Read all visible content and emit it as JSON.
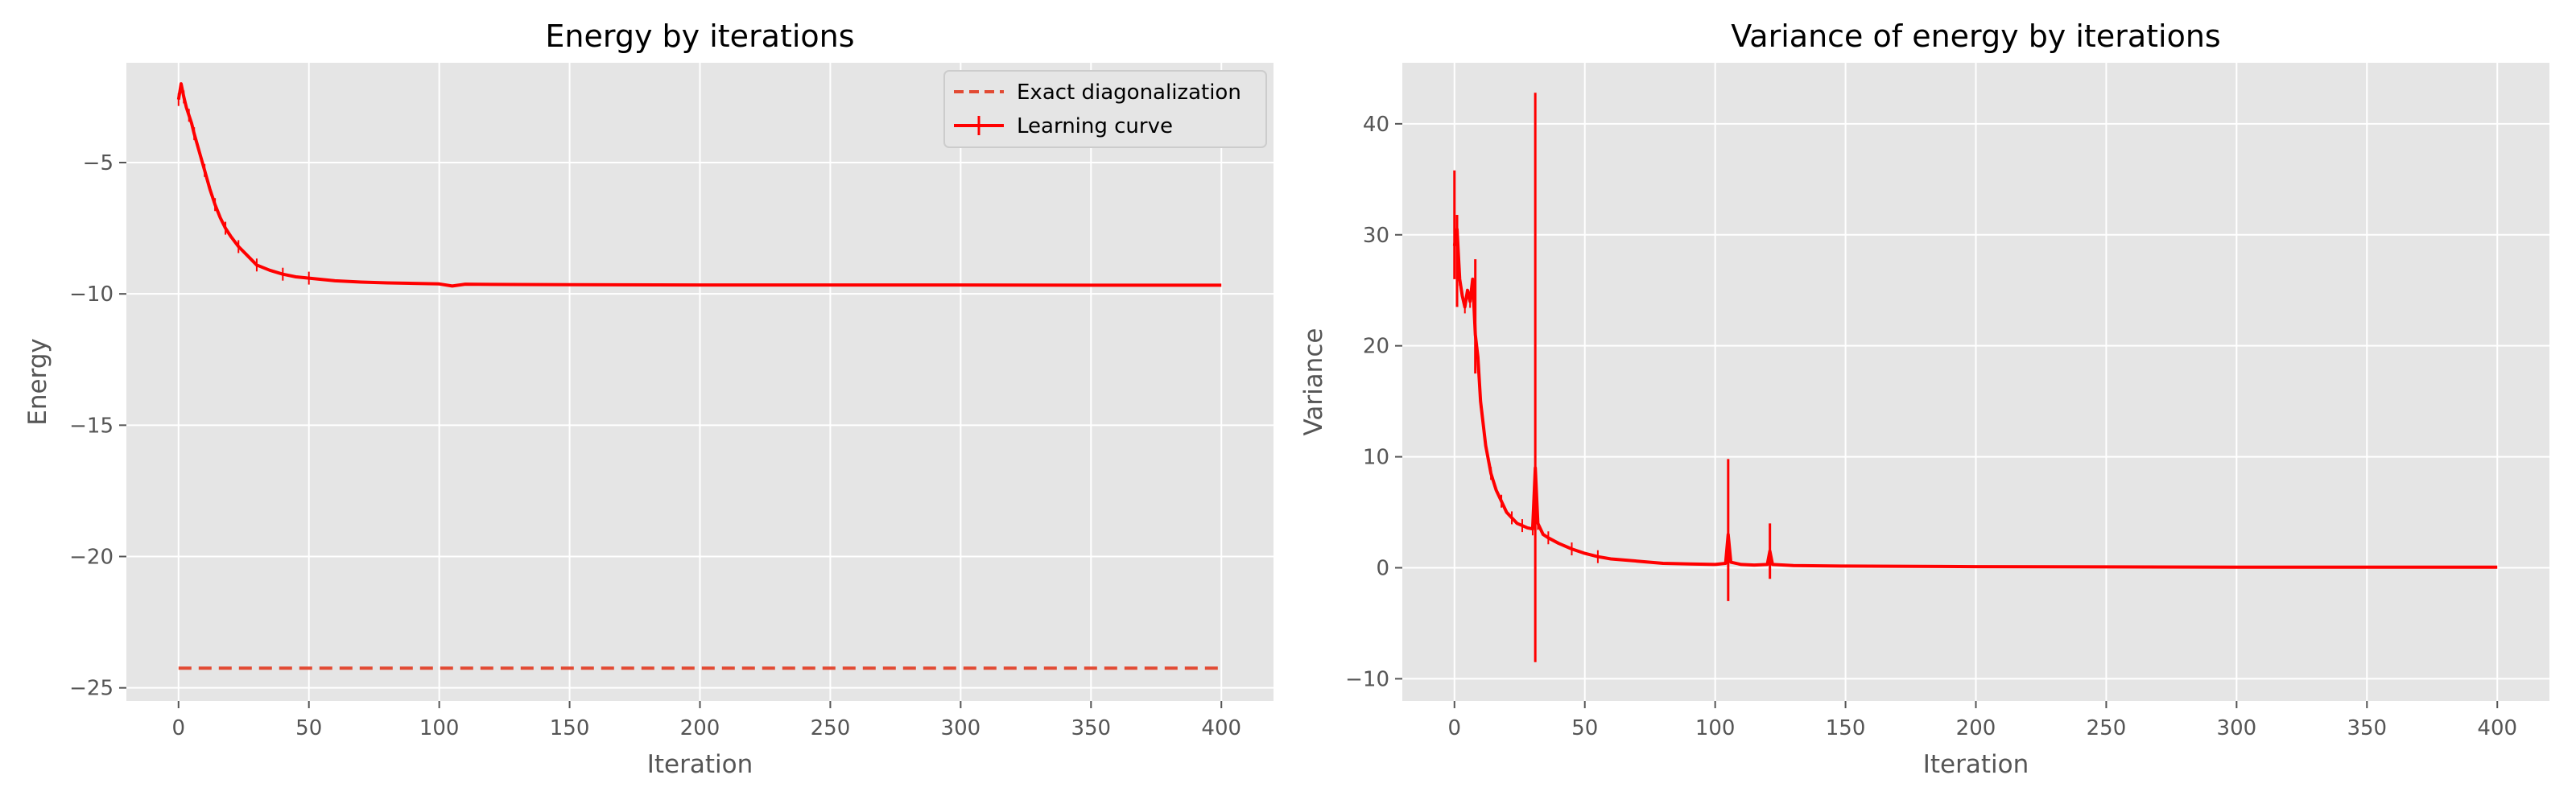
{
  "chart_data": [
    {
      "type": "line",
      "title": "Energy by iterations",
      "xlabel": "Iteration",
      "ylabel": "Energy",
      "xlim": [
        -20,
        420
      ],
      "ylim": [
        -25.5,
        -1.2
      ],
      "xticks": [
        0,
        50,
        100,
        150,
        200,
        250,
        300,
        350,
        400
      ],
      "yticks": [
        -25,
        -20,
        -15,
        -10,
        -5
      ],
      "ytick_labels": [
        "−25",
        "−20",
        "−15",
        "−10",
        "−5"
      ],
      "grid": true,
      "legend": "top-right",
      "style": "ggplot",
      "series": [
        {
          "name": "Exact diagonalization",
          "linestyle": "dashed",
          "color": "#E24A33",
          "x": [
            0,
            400
          ],
          "y": [
            -24.25,
            -24.25
          ]
        },
        {
          "name": "Learning curve",
          "linestyle": "solid",
          "errorbars": true,
          "color": "#FF0000",
          "x": [
            0,
            1,
            2,
            3,
            4,
            5,
            6,
            8,
            10,
            12,
            14,
            16,
            18,
            20,
            23,
            26,
            30,
            35,
            40,
            45,
            50,
            60,
            70,
            80,
            90,
            100,
            105,
            110,
            120,
            150,
            200,
            250,
            300,
            350,
            400
          ],
          "y": [
            -2.6,
            -2.0,
            -2.5,
            -2.9,
            -3.2,
            -3.5,
            -3.9,
            -4.6,
            -5.3,
            -6.0,
            -6.6,
            -7.1,
            -7.5,
            -7.8,
            -8.2,
            -8.5,
            -8.9,
            -9.1,
            -9.25,
            -9.35,
            -9.4,
            -9.5,
            -9.55,
            -9.58,
            -9.6,
            -9.62,
            -9.7,
            -9.63,
            -9.64,
            -9.65,
            -9.66,
            -9.66,
            -9.66,
            -9.67,
            -9.67
          ]
        }
      ]
    },
    {
      "type": "line",
      "title": "Variance of energy by iterations",
      "xlabel": "Iteration",
      "ylabel": "Variance",
      "xlim": [
        -20,
        420
      ],
      "ylim": [
        -12,
        45.5
      ],
      "xticks": [
        0,
        50,
        100,
        150,
        200,
        250,
        300,
        350,
        400
      ],
      "yticks": [
        -10,
        0,
        10,
        20,
        30,
        40
      ],
      "ytick_labels": [
        "−10",
        "0",
        "10",
        "20",
        "30",
        "40"
      ],
      "grid": true,
      "style": "ggplot",
      "series": [
        {
          "color": "#FF0000",
          "linestyle": "solid",
          "errorbars": true,
          "x": [
            0,
            1,
            2,
            3,
            4,
            5,
            6,
            7,
            8,
            9,
            10,
            12,
            14,
            16,
            18,
            20,
            22,
            24,
            26,
            28,
            30,
            31,
            32,
            34,
            36,
            40,
            45,
            50,
            55,
            60,
            70,
            80,
            90,
            100,
            104,
            105,
            106,
            110,
            115,
            120,
            121,
            122,
            130,
            150,
            200,
            250,
            300,
            350,
            400
          ],
          "y": [
            29,
            30.5,
            26,
            24.5,
            23.5,
            25,
            24,
            26,
            21,
            19,
            15,
            11,
            8.5,
            7,
            6,
            5,
            4.5,
            4,
            3.8,
            3.6,
            3.5,
            9,
            4,
            3,
            2.7,
            2.2,
            1.7,
            1.3,
            1.0,
            0.8,
            0.6,
            0.4,
            0.35,
            0.3,
            0.4,
            3,
            0.5,
            0.3,
            0.25,
            0.3,
            1.5,
            0.3,
            0.2,
            0.15,
            0.1,
            0.08,
            0.06,
            0.05,
            0.05
          ],
          "errorbars_y": [
            {
              "x": 31,
              "low": -8.5,
              "high": 42.8
            },
            {
              "x": 105,
              "low": -3,
              "high": 9.8
            },
            {
              "x": 121,
              "low": -1,
              "high": 4
            },
            {
              "x": 0,
              "low": 26,
              "high": 35.8
            },
            {
              "x": 1,
              "low": 23.5,
              "high": 31.8
            },
            {
              "x": 8,
              "low": 17.5,
              "high": 27.8
            }
          ]
        }
      ]
    }
  ]
}
